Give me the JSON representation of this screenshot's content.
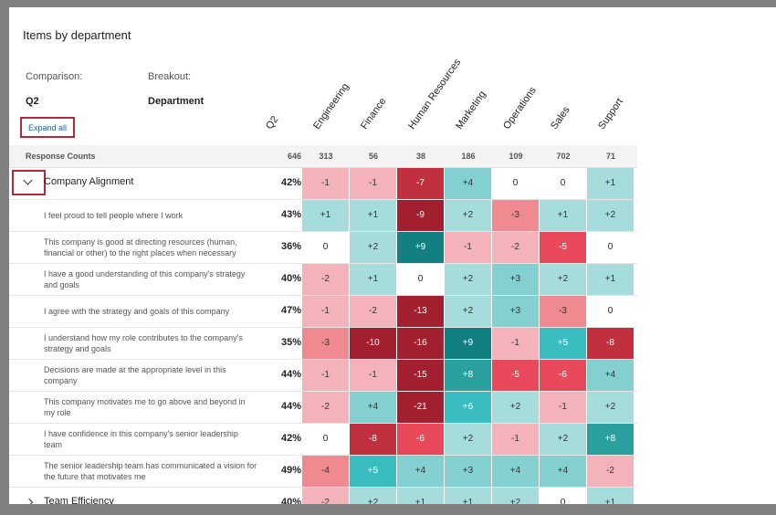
{
  "header": {
    "title": "Items by department"
  },
  "controls": {
    "comparison_label": "Comparison:",
    "comparison_value": "Q2",
    "breakout_label": "Breakout:",
    "breakout_value": "Department",
    "expand_button": "Expand all"
  },
  "table": {
    "columns": [
      "Q2",
      "Engineering",
      "Finance",
      "Human Resources",
      "Marketing",
      "Operations",
      "Sales",
      "Support"
    ],
    "counts_label": "Response Counts",
    "counts": [
      646,
      313,
      56,
      38,
      186,
      109,
      702,
      71
    ],
    "rows": [
      {
        "label": "Company Alignment",
        "group": true,
        "expanded": true,
        "score": "42%",
        "cells": [
          "-1",
          "-1",
          "-7",
          "+4",
          "0",
          "0",
          "+1"
        ]
      },
      {
        "label": "I feel proud to tell people where I work",
        "group": false,
        "score": "43%",
        "cells": [
          "+1",
          "+1",
          "-9",
          "+2",
          "-3",
          "+1",
          "+2"
        ]
      },
      {
        "label": "This company is good at directing resources (human, financial or other) to the right places when necessary",
        "group": false,
        "score": "36%",
        "cells": [
          "0",
          "+2",
          "+9",
          "-1",
          "-2",
          "-5",
          "0"
        ]
      },
      {
        "label": "I have a good understanding of this company's strategy and goals",
        "group": false,
        "score": "40%",
        "cells": [
          "-2",
          "+1",
          "0",
          "+2",
          "+3",
          "+2",
          "+1"
        ]
      },
      {
        "label": "I agree with the strategy and goals of this company",
        "group": false,
        "score": "47%",
        "cells": [
          "-1",
          "-2",
          "-13",
          "+2",
          "+3",
          "-3",
          "0"
        ]
      },
      {
        "label": "I understand how my role contributes to the company's strategy and goals",
        "group": false,
        "score": "35%",
        "cells": [
          "-3",
          "-10",
          "-16",
          "+9",
          "-1",
          "+5",
          "-8"
        ]
      },
      {
        "label": "Decisions are made at the appropriate level in this company",
        "group": false,
        "score": "44%",
        "cells": [
          "-1",
          "-1",
          "-15",
          "+8",
          "-5",
          "-6",
          "+4"
        ]
      },
      {
        "label": "This company motivates me to go above and beyond in my role",
        "group": false,
        "score": "44%",
        "cells": [
          "-2",
          "+4",
          "-21",
          "+6",
          "+2",
          "-1",
          "+2"
        ]
      },
      {
        "label": "I have confidence in this company's senior leadership team",
        "group": false,
        "score": "42%",
        "cells": [
          "0",
          "-8",
          "-6",
          "+2",
          "-1",
          "+2",
          "+8"
        ]
      },
      {
        "label": "The senior leadership team has communicated a vision for the future that motivates me",
        "group": false,
        "score": "49%",
        "cells": [
          "-4",
          "+5",
          "+4",
          "+3",
          "+4",
          "+4",
          "-2"
        ]
      },
      {
        "label": "Team Efficiency",
        "group": true,
        "expanded": false,
        "score": "40%",
        "cells": [
          "-2",
          "+2",
          "+1",
          "+1",
          "+2",
          "0",
          "+1"
        ]
      }
    ]
  }
}
